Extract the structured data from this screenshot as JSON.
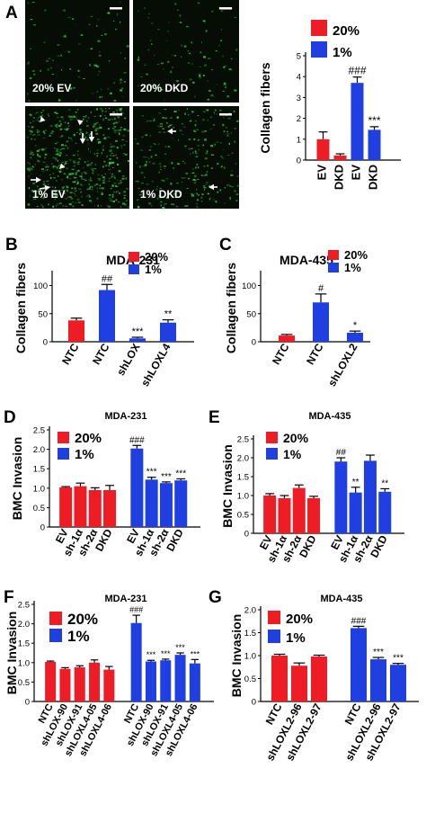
{
  "colors": {
    "red": "#ee1c24",
    "blue": "#1f3fe0",
    "micro_bg": "#050d05",
    "fiber": "#3ccd3c"
  },
  "micro": {
    "panel_letter": "A",
    "tiles": [
      {
        "label": "20% EV",
        "density": "low",
        "arrows": []
      },
      {
        "label": "20%  DKD",
        "density": "low",
        "arrows": []
      },
      {
        "label": "1% EV",
        "density": "high",
        "arrows": [
          "arrowhead",
          "arrowhead",
          "arrow-down",
          "arrow-down",
          "arrowhead",
          "arrow-right",
          "arrow-right"
        ]
      },
      {
        "label": "1% DKD",
        "density": "medium",
        "arrows": [
          "arrow-left",
          "arrow-left"
        ]
      }
    ]
  },
  "chart_data": [
    {
      "id": "A",
      "panel_letter": "",
      "type": "bar",
      "title": "",
      "ylabel": "Collagen fibers",
      "ylim": [
        0,
        5
      ],
      "yticks": [
        0,
        1,
        2,
        3,
        4,
        5
      ],
      "categories": [
        "EV",
        "DKD",
        "EV",
        "DKD"
      ],
      "values": [
        1.0,
        0.22,
        3.7,
        1.45
      ],
      "errors": [
        0.35,
        0.08,
        0.28,
        0.15
      ],
      "colors": [
        "red",
        "red",
        "blue",
        "blue"
      ],
      "sig": [
        "",
        "",
        "###",
        "***"
      ],
      "legend": [
        {
          "name": "20%",
          "color": "red"
        },
        {
          "name": "1%",
          "color": "blue"
        }
      ],
      "legend_position": "top"
    },
    {
      "id": "B",
      "panel_letter": "B",
      "type": "bar",
      "title": "MDA-231",
      "ylabel": "Collagen fibers",
      "ylim": [
        0,
        120
      ],
      "yticks": [
        0,
        50,
        100
      ],
      "categories": [
        "NTC",
        "NTC",
        "shLOX",
        "shLOXL4"
      ],
      "values": [
        38,
        92,
        6,
        34
      ],
      "errors": [
        4,
        10,
        2,
        5
      ],
      "colors": [
        "red",
        "blue",
        "blue",
        "blue"
      ],
      "sig": [
        "",
        "##",
        "***",
        "**"
      ],
      "legend": [
        {
          "name": "20%",
          "color": "red"
        },
        {
          "name": "1%",
          "color": "blue"
        }
      ],
      "legend_position": "top-right"
    },
    {
      "id": "C",
      "panel_letter": "C",
      "type": "bar",
      "title": "MDA-435",
      "ylabel": "Collagen fibers",
      "ylim": [
        0,
        120
      ],
      "yticks": [
        0,
        50,
        100
      ],
      "categories": [
        "NTC",
        "NTC",
        "shLOXL2"
      ],
      "values": [
        11,
        70,
        16
      ],
      "errors": [
        2,
        15,
        3
      ],
      "colors": [
        "red",
        "blue",
        "blue"
      ],
      "sig": [
        "",
        "#",
        "*"
      ],
      "legend": [
        {
          "name": "20%",
          "color": "red"
        },
        {
          "name": "1%",
          "color": "blue"
        }
      ],
      "legend_position": "top-right"
    },
    {
      "id": "D",
      "panel_letter": "D",
      "type": "bar",
      "title": "MDA-231",
      "ylabel": "BMC Invasion",
      "ylim": [
        0,
        2.5
      ],
      "yticks": [
        0,
        0.5,
        1.0,
        1.5,
        2.0,
        2.5
      ],
      "ytick_labels": [
        "0",
        "0.5",
        "1.0",
        "1.5",
        "2.0",
        "2.5"
      ],
      "categories": [
        "EV",
        "sh-1α",
        "sh-2α",
        "DKD",
        "",
        "EV",
        "sh-1α",
        "sh-2α",
        "DKD"
      ],
      "values": [
        1.02,
        1.05,
        0.95,
        0.95,
        null,
        2.02,
        1.22,
        1.13,
        1.2
      ],
      "errors": [
        0.02,
        0.08,
        0.06,
        0.12,
        null,
        0.08,
        0.06,
        0.03,
        0.04
      ],
      "colors": [
        "red",
        "red",
        "red",
        "red",
        "",
        "blue",
        "blue",
        "blue",
        "blue"
      ],
      "sig": [
        "",
        "",
        "",
        "",
        "",
        "###",
        "***",
        "***",
        "***"
      ],
      "legend": [
        {
          "name": "20%",
          "color": "red"
        },
        {
          "name": "1%",
          "color": "blue"
        }
      ],
      "legend_position": "top-left"
    },
    {
      "id": "E",
      "panel_letter": "E",
      "type": "bar",
      "title": "MDA-435",
      "ylabel": "BMC Invasion",
      "ylim": [
        0,
        2.5
      ],
      "yticks": [
        0,
        0.5,
        1.0,
        1.5,
        2.0,
        2.5
      ],
      "ytick_labels": [
        "0",
        "0.5",
        "1.0",
        "1.5",
        "2.0",
        "2.5"
      ],
      "categories": [
        "EV",
        "sh-1α",
        "sh-2α",
        "DKD",
        "",
        "EV",
        "sh-1α",
        "sh-2α",
        "DKD"
      ],
      "values": [
        1.0,
        0.93,
        1.2,
        0.93,
        null,
        1.9,
        1.08,
        1.92,
        1.1
      ],
      "errors": [
        0.05,
        0.07,
        0.08,
        0.05,
        null,
        0.1,
        0.14,
        0.15,
        0.08
      ],
      "colors": [
        "red",
        "red",
        "red",
        "red",
        "",
        "blue",
        "blue",
        "blue",
        "blue"
      ],
      "sig": [
        "",
        "",
        "",
        "",
        "",
        "##",
        "**",
        "",
        "**"
      ],
      "legend": [
        {
          "name": "20%",
          "color": "red"
        },
        {
          "name": "1%",
          "color": "blue"
        }
      ],
      "legend_position": "top-left"
    },
    {
      "id": "F",
      "panel_letter": "F",
      "type": "bar",
      "title": "MDA-231",
      "ylabel": "BMC Invasion",
      "ylim": [
        0,
        2.5
      ],
      "yticks": [
        0,
        0.5,
        1.0,
        1.5,
        2.0,
        2.5
      ],
      "ytick_labels": [
        "0",
        "0.5",
        "1.0",
        "1.5",
        "2.0",
        "2.5"
      ],
      "categories": [
        "NTC",
        "shLOX-90",
        "shLOX-91",
        "shLOXL4-05",
        "shLOXL4-06",
        "",
        "NTC",
        "shLOX-90",
        "shLOX-91",
        "shLOXL4-05",
        "shLOXL4-06"
      ],
      "values": [
        1.02,
        0.84,
        0.88,
        1.0,
        0.82,
        null,
        2.02,
        1.03,
        1.06,
        1.2,
        0.98
      ],
      "errors": [
        0.02,
        0.03,
        0.04,
        0.07,
        0.08,
        null,
        0.2,
        0.03,
        0.03,
        0.05,
        0.1
      ],
      "colors": [
        "red",
        "red",
        "red",
        "red",
        "red",
        "",
        "blue",
        "blue",
        "blue",
        "blue",
        "blue"
      ],
      "sig": [
        "",
        "",
        "",
        "",
        "",
        "",
        "###",
        "***",
        "***",
        "***",
        "***"
      ],
      "legend": [
        {
          "name": "20%",
          "color": "red"
        },
        {
          "name": "1%",
          "color": "blue"
        }
      ],
      "legend_position": "top-left"
    },
    {
      "id": "G",
      "panel_letter": "G",
      "type": "bar",
      "title": "MDA-435",
      "ylabel": "BMC  Invasion",
      "ylim": [
        0,
        2.0
      ],
      "yticks": [
        0,
        0.5,
        1.0,
        1.5,
        2.0
      ],
      "ytick_labels": [
        "0",
        "0.5",
        "1.0",
        "1.5",
        "2.0"
      ],
      "categories": [
        "NTC",
        "shLOXL2-96",
        "shLOXL2-97",
        "",
        "NTC",
        "shLOXL2-96",
        "shLOXL2-97"
      ],
      "values": [
        1.0,
        0.78,
        0.98,
        null,
        1.6,
        0.92,
        0.8
      ],
      "errors": [
        0.03,
        0.06,
        0.03,
        null,
        0.04,
        0.04,
        0.03
      ],
      "colors": [
        "red",
        "red",
        "red",
        "",
        "blue",
        "blue",
        "blue"
      ],
      "sig": [
        "",
        "",
        "",
        "",
        "###",
        "***",
        "***"
      ],
      "legend": [
        {
          "name": "20%",
          "color": "red"
        },
        {
          "name": "1%",
          "color": "blue"
        }
      ],
      "legend_position": "top-left"
    }
  ]
}
